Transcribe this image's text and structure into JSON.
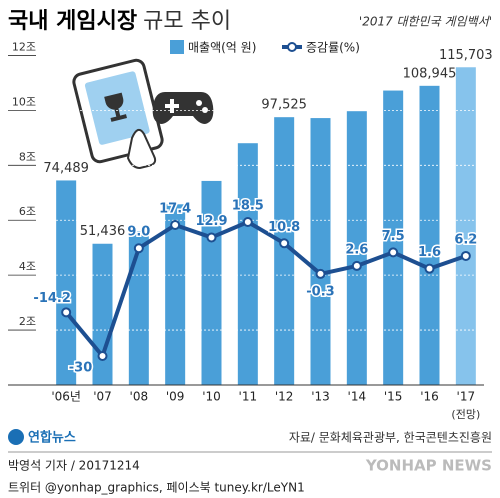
{
  "chart_data": {
    "type": "bar-line",
    "title": [
      "국내 게임시장",
      "규모 추이"
    ],
    "source_note": "'2017 대한민국 게임백서'",
    "categories": [
      "'06년",
      "'07",
      "'08",
      "'09",
      "'10",
      "'11",
      "'12",
      "'13",
      "'14",
      "'15",
      "'16",
      "'17"
    ],
    "category_note": "(전망)",
    "series": [
      {
        "name": "매출액(억 원)",
        "color": "#4a9fd8",
        "colors": [
          "#4a9fd8",
          "#4a9fd8",
          "#4a9fd8",
          "#4a9fd8",
          "#4a9fd8",
          "#4a9fd8",
          "#4a9fd8",
          "#4a9fd8",
          "#4a9fd8",
          "#4a9fd8",
          "#4a9fd8",
          "#86c3ec"
        ],
        "values": [
          74489,
          51436,
          56047,
          65806,
          74312,
          88047,
          97525,
          97198,
          99706,
          107223,
          108945,
          115703
        ],
        "value_labels": [
          "74,489",
          "51,436",
          null,
          null,
          null,
          null,
          "97,525",
          null,
          null,
          null,
          "108,945",
          "115,703"
        ]
      },
      {
        "name": "증감률(%)",
        "color": "#1d4f91",
        "axis": "y2",
        "values": [
          -14.2,
          -30,
          9,
          17.4,
          12.9,
          18.5,
          10.8,
          -0.3,
          2.6,
          7.5,
          1.6,
          6.2
        ],
        "value_labels": [
          "-14.2",
          "-30",
          "9.0",
          "17.4",
          "12.9",
          "18.5",
          "10.8",
          "-0.3",
          "2.6",
          "7.5",
          "1.6",
          "6.2"
        ]
      }
    ],
    "ylim": [
      0,
      130000
    ],
    "yticks": [
      {
        "value": 20000,
        "label": "2조"
      },
      {
        "value": 40000,
        "label": "4조"
      },
      {
        "value": 60000,
        "label": "6조"
      },
      {
        "value": 80000,
        "label": "8조"
      },
      {
        "value": 100000,
        "label": "10조"
      },
      {
        "value": 120000,
        "label": "12조"
      }
    ],
    "y2lim": [
      -40.5,
      88.7
    ],
    "grid": true,
    "source": "자료/ 문화체육관광부, 한국콘텐츠진흥원",
    "agency": "연합뉴스",
    "byline": "박영석 기자 / 20171214",
    "social": "트위터 @yonhap_graphics, 페이스북 tuney.kr/LeYN1",
    "watermark": "YONHAP NEWS"
  }
}
